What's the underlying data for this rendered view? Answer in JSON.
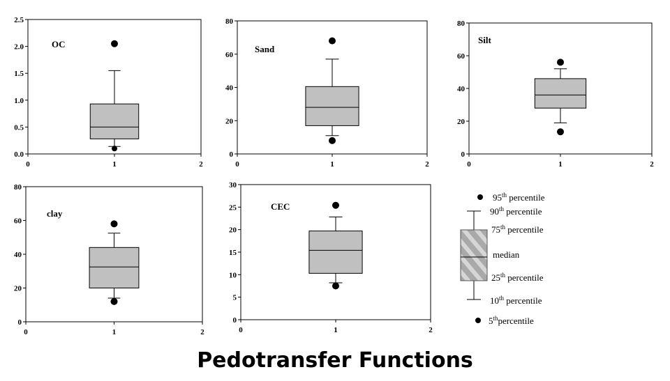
{
  "title": "Pedotransfer Functions",
  "chart_data": [
    {
      "type": "box",
      "label": "OC",
      "ylim": [
        0,
        2.5
      ],
      "yticks": [
        "0.0",
        "0.5",
        "1.0",
        "1.5",
        "2.0",
        "2.5"
      ],
      "yticks_v": [
        0,
        0.5,
        1,
        1.5,
        2,
        2.5
      ],
      "xlim": [
        0,
        2
      ],
      "xticks": [
        "0",
        "1",
        "2"
      ],
      "x": 1,
      "stats": {
        "p5": 0.1,
        "p10": 0.14,
        "p25": 0.28,
        "median": 0.5,
        "p75": 0.93,
        "p90": 1.55,
        "p95": 2.05
      }
    },
    {
      "type": "box",
      "label": "Sand",
      "ylim": [
        0,
        80
      ],
      "yticks": [
        "0",
        "20",
        "40",
        "60",
        "80"
      ],
      "yticks_v": [
        0,
        20,
        40,
        60,
        80
      ],
      "xlim": [
        0,
        2
      ],
      "xticks": [
        "0",
        "1",
        "2"
      ],
      "x": 1,
      "stats": {
        "p5": 8,
        "p10": 11,
        "p25": 17,
        "median": 28,
        "p75": 40.5,
        "p90": 57,
        "p95": 68
      }
    },
    {
      "type": "box",
      "label": "Silt",
      "ylim": [
        0,
        80
      ],
      "yticks": [
        "0",
        "20",
        "40",
        "60",
        "80"
      ],
      "yticks_v": [
        0,
        20,
        40,
        60,
        80
      ],
      "xlim": [
        0,
        2
      ],
      "xticks": [
        "0",
        "1",
        "2"
      ],
      "x": 1,
      "stats": {
        "p5": 13.5,
        "p10": 19,
        "p25": 28,
        "median": 36,
        "p75": 46,
        "p90": 52,
        "p95": 56
      }
    },
    {
      "type": "box",
      "label": "clay",
      "ylim": [
        0,
        80
      ],
      "yticks": [
        "0",
        "20",
        "40",
        "60",
        "80"
      ],
      "yticks_v": [
        0,
        20,
        40,
        60,
        80
      ],
      "xlim": [
        0,
        2
      ],
      "xticks": [
        "0",
        "1",
        "2"
      ],
      "x": 1,
      "stats": {
        "p5": 12,
        "p10": 14,
        "p25": 20,
        "median": 32.5,
        "p75": 44,
        "p90": 52.5,
        "p95": 58
      }
    },
    {
      "type": "box",
      "label": "CEC",
      "ylim": [
        0,
        30
      ],
      "yticks": [
        "0",
        "5",
        "10",
        "15",
        "20",
        "25",
        "30"
      ],
      "yticks_v": [
        0,
        5,
        10,
        15,
        20,
        25,
        30
      ],
      "xlim": [
        0,
        2
      ],
      "xticks": [
        "0",
        "1",
        "2"
      ],
      "x": 1,
      "stats": {
        "p5": 7.5,
        "p10": 8.2,
        "p25": 10.3,
        "median": 15.4,
        "p75": 19.7,
        "p90": 22.8,
        "p95": 25.4
      }
    }
  ],
  "legend": [
    {
      "key": "p95",
      "num": "95",
      "sup": "th",
      "text": " percentile"
    },
    {
      "key": "p90",
      "num": "90",
      "sup": "th",
      "text": " percentile"
    },
    {
      "key": "p75",
      "num": "75",
      "sup": "th",
      "text": " percentile"
    },
    {
      "key": "median",
      "num": "",
      "sup": "",
      "text": "median"
    },
    {
      "key": "p25",
      "num": "25",
      "sup": "th",
      "text": " percentile"
    },
    {
      "key": "p10",
      "num": "10",
      "sup": "th",
      "text": " percentile"
    },
    {
      "key": "p5",
      "num": "5",
      "sup": "th",
      "text": "percentile"
    }
  ],
  "colors": {
    "box_fill": "#c0c0c0",
    "stroke": "#000000",
    "background": "#ffffff"
  }
}
